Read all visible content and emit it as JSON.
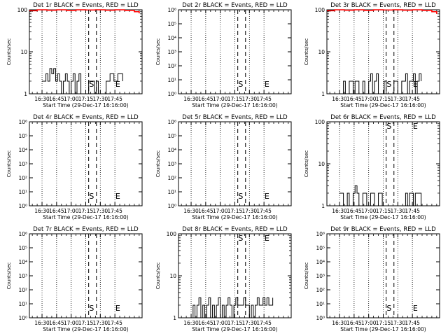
{
  "colors": {
    "events": "#000000",
    "lld": "#ff0000",
    "background": "#ffffff"
  },
  "chart_data": [
    {
      "type": "line",
      "title": "Det 1r BLACK = Events, RED = LLD",
      "xlabel": "Start Time (29-Dec-17 16:16:00)",
      "ylabel": "Counts/sec",
      "yscale": "log",
      "ylim": [
        1,
        100
      ],
      "y_ticks": [
        "1",
        "10",
        "100"
      ],
      "x_ticks": [
        "16:30",
        "16:45",
        "17:00",
        "17:15",
        "17:30",
        "17:45"
      ],
      "markers": [
        {
          "label": "S",
          "x_min": 1040
        },
        {
          "label": "E",
          "x_min": 1070
        }
      ],
      "series": [
        {
          "name": "Events",
          "values": [
            [
              990,
              2
            ],
            [
              993,
              2
            ],
            [
              994,
              3
            ],
            [
              996,
              2
            ],
            [
              998,
              4
            ],
            [
              1000,
              3
            ],
            [
              1002,
              4
            ],
            [
              1004,
              2
            ],
            [
              1006,
              3
            ],
            [
              1008,
              2
            ],
            [
              1010,
              1
            ],
            [
              1012,
              2
            ],
            [
              1014,
              3
            ],
            [
              1016,
              2
            ],
            [
              1018,
              1
            ],
            [
              1020,
              2
            ],
            [
              1022,
              3
            ],
            [
              1024,
              1
            ],
            [
              1026,
              2
            ],
            [
              1028,
              3
            ],
            [
              1030,
              1
            ],
            [
              1034,
              1
            ],
            [
              1038,
              2
            ],
            [
              1041,
              2
            ],
            [
              1044,
              1
            ],
            [
              1046,
              2
            ],
            [
              1048,
              1
            ],
            [
              1052,
              1
            ],
            [
              1056,
              2
            ],
            [
              1060,
              3
            ],
            [
              1064,
              2
            ],
            [
              1068,
              3
            ],
            [
              1072,
              3
            ],
            [
              1073,
              2
            ]
          ]
        },
        {
          "name": "LLD",
          "values": [
            [
              977,
              95
            ],
            [
              985,
              100
            ],
            [
              995,
              98
            ],
            [
              1005,
              100
            ],
            [
              1015,
              97
            ],
            [
              1025,
              100
            ],
            [
              1035,
              99
            ],
            [
              1045,
              100
            ],
            [
              1055,
              98
            ],
            [
              1065,
              100
            ],
            [
              1075,
              97
            ],
            [
              1085,
              90
            ],
            [
              1090,
              82
            ]
          ]
        }
      ]
    },
    {
      "type": "line",
      "title": "Det 2r BLACK = Events, RED = LLD",
      "xlabel": "Start Time (29-Dec-17 16:16:00)",
      "ylabel": "Counts/sec",
      "yscale": "log",
      "ylim": [
        1,
        1000000
      ],
      "y_ticks": [
        "10⁰",
        "10¹",
        "10²",
        "10³",
        "10⁴",
        "10⁵",
        "10⁶"
      ],
      "x_ticks": [
        "16:30",
        "16:45",
        "17:00",
        "17:15",
        "17:30",
        "17:45"
      ],
      "markers": [
        {
          "label": "S",
          "x_min": 1040
        },
        {
          "label": "E",
          "x_min": 1070
        }
      ],
      "series": []
    },
    {
      "type": "line",
      "title": "Det 3r BLACK = Events, RED = LLD",
      "xlabel": "Start Time (29-Dec-17 16:16:00)",
      "ylabel": "Counts/sec",
      "yscale": "log",
      "ylim": [
        1,
        100
      ],
      "y_ticks": [
        "1",
        "10",
        "100"
      ],
      "x_ticks": [
        "16:30",
        "16:45",
        "17:00",
        "17:15",
        "17:30",
        "17:45"
      ],
      "markers": [
        {
          "label": "S",
          "x_min": 1040
        },
        {
          "label": "E",
          "x_min": 1070
        }
      ],
      "series": [
        {
          "name": "Events",
          "values": [
            [
              990,
              1
            ],
            [
              994,
              2
            ],
            [
              996,
              1
            ],
            [
              1000,
              2
            ],
            [
              1004,
              1
            ],
            [
              1006,
              2
            ],
            [
              1010,
              1
            ],
            [
              1014,
              2
            ],
            [
              1016,
              1
            ],
            [
              1020,
              2
            ],
            [
              1022,
              3
            ],
            [
              1024,
              1
            ],
            [
              1026,
              2
            ],
            [
              1028,
              3
            ],
            [
              1030,
              1
            ],
            [
              1034,
              1
            ],
            [
              1036,
              2
            ],
            [
              1038,
              1
            ],
            [
              1044,
              1
            ],
            [
              1046,
              2
            ],
            [
              1050,
              1
            ],
            [
              1054,
              2
            ],
            [
              1058,
              3
            ],
            [
              1060,
              1
            ],
            [
              1062,
              2
            ],
            [
              1066,
              3
            ],
            [
              1068,
              1
            ],
            [
              1070,
              2
            ],
            [
              1072,
              3
            ],
            [
              1074,
              2
            ]
          ]
        },
        {
          "name": "LLD",
          "values": [
            [
              977,
              95
            ],
            [
              985,
              100
            ],
            [
              995,
              98
            ],
            [
              1005,
              100
            ],
            [
              1015,
              97
            ],
            [
              1025,
              100
            ],
            [
              1035,
              99
            ],
            [
              1045,
              100
            ],
            [
              1055,
              98
            ],
            [
              1065,
              100
            ],
            [
              1075,
              97
            ],
            [
              1085,
              90
            ],
            [
              1090,
              80
            ]
          ]
        }
      ]
    },
    {
      "type": "line",
      "title": "Det 4r BLACK = Events, RED = LLD",
      "xlabel": "Start Time (29-Dec-17 16:16:00)",
      "ylabel": "Counts/sec",
      "yscale": "log",
      "ylim": [
        1,
        1000000
      ],
      "y_ticks": [
        "10⁰",
        "10¹",
        "10²",
        "10³",
        "10⁴",
        "10⁵",
        "10⁶"
      ],
      "x_ticks": [
        "16:30",
        "16:45",
        "17:00",
        "17:15",
        "17:30",
        "17:45"
      ],
      "markers": [
        {
          "label": "S",
          "x_min": 1040
        },
        {
          "label": "E",
          "x_min": 1070
        }
      ],
      "series": []
    },
    {
      "type": "line",
      "title": "Det 5r BLACK = Events, RED = LLD",
      "xlabel": "Start Time (29-Dec-17 16:16:00)",
      "ylabel": "Counts/sec",
      "yscale": "log",
      "ylim": [
        1,
        1000000
      ],
      "y_ticks": [
        "10⁰",
        "10¹",
        "10²",
        "10³",
        "10⁴",
        "10⁵",
        "10⁶"
      ],
      "x_ticks": [
        "16:30",
        "16:45",
        "17:00",
        "17:15",
        "17:30",
        "17:45"
      ],
      "markers": [
        {
          "label": "S",
          "x_min": 1040
        },
        {
          "label": "E",
          "x_min": 1070
        }
      ],
      "series": []
    },
    {
      "type": "line",
      "title": "Det 6r BLACK = Events, RED = LLD",
      "xlabel": "Start Time (29-Dec-17 16:16:00)",
      "ylabel": "Counts/sec",
      "yscale": "log",
      "ylim": [
        1,
        100
      ],
      "y_ticks": [
        "1",
        "10",
        "100"
      ],
      "x_ticks": [
        "16:30",
        "16:45",
        "17:00",
        "17:15",
        "17:30",
        "17:45"
      ],
      "markers": [
        {
          "label": "S",
          "x_min": 1040
        },
        {
          "label": "E",
          "x_min": 1070
        }
      ],
      "series": [
        {
          "name": "Events",
          "values": [
            [
              990,
              2
            ],
            [
              994,
              1
            ],
            [
              998,
              2
            ],
            [
              1000,
              1
            ],
            [
              1004,
              2
            ],
            [
              1006,
              3
            ],
            [
              1008,
              2
            ],
            [
              1010,
              1
            ],
            [
              1014,
              2
            ],
            [
              1018,
              1
            ],
            [
              1022,
              2
            ],
            [
              1026,
              1
            ],
            [
              1030,
              2
            ],
            [
              1034,
              1
            ],
            [
              1040,
              1
            ],
            [
              1044,
              1
            ],
            [
              1052,
              1
            ],
            [
              1058,
              2
            ],
            [
              1060,
              1
            ],
            [
              1062,
              2
            ],
            [
              1066,
              1
            ],
            [
              1068,
              2
            ],
            [
              1072,
              2
            ],
            [
              1074,
              1
            ]
          ]
        }
      ]
    },
    {
      "type": "line",
      "title": "Det 7r BLACK = Events, RED = LLD",
      "xlabel": "Start Time (29-Dec-17 16:16:00)",
      "ylabel": "Counts/sec",
      "yscale": "log",
      "ylim": [
        1,
        1000000
      ],
      "y_ticks": [
        "10⁰",
        "10¹",
        "10²",
        "10³",
        "10⁴",
        "10⁵",
        "10⁶"
      ],
      "x_ticks": [
        "16:30",
        "16:45",
        "17:00",
        "17:15",
        "17:30",
        "17:45"
      ],
      "markers": [
        {
          "label": "S",
          "x_min": 1040
        },
        {
          "label": "E",
          "x_min": 1070
        }
      ],
      "series": []
    },
    {
      "type": "line",
      "title": "Det 8r BLACK = Events, RED = LLD",
      "xlabel": "Start Time (29-Dec-17 16:16:00)",
      "ylabel": "Counts/sec",
      "yscale": "log",
      "ylim": [
        1,
        100
      ],
      "y_ticks": [
        "1",
        "10",
        "100"
      ],
      "x_ticks": [
        "16:30",
        "16:45",
        "17:00",
        "17:15",
        "17:30",
        "17:45"
      ],
      "markers": [
        {
          "label": "S",
          "x_min": 1040
        },
        {
          "label": "E",
          "x_min": 1070
        }
      ],
      "series": [
        {
          "name": "Events",
          "values": [
            [
              990,
              1
            ],
            [
              992,
              2
            ],
            [
              994,
              1
            ],
            [
              996,
              2
            ],
            [
              998,
              3
            ],
            [
              1000,
              1
            ],
            [
              1002,
              2
            ],
            [
              1004,
              1
            ],
            [
              1006,
              2
            ],
            [
              1008,
              3
            ],
            [
              1010,
              1
            ],
            [
              1012,
              2
            ],
            [
              1014,
              1
            ],
            [
              1016,
              2
            ],
            [
              1018,
              3
            ],
            [
              1020,
              1
            ],
            [
              1022,
              2
            ],
            [
              1024,
              1
            ],
            [
              1026,
              2
            ],
            [
              1028,
              3
            ],
            [
              1030,
              2
            ],
            [
              1032,
              1
            ],
            [
              1034,
              2
            ],
            [
              1036,
              3
            ],
            [
              1038,
              2
            ],
            [
              1042,
              2
            ],
            [
              1044,
              3
            ],
            [
              1046,
              2
            ],
            [
              1048,
              2
            ],
            [
              1050,
              1
            ],
            [
              1052,
              2
            ],
            [
              1054,
              1
            ],
            [
              1056,
              2
            ],
            [
              1058,
              3
            ],
            [
              1060,
              2
            ],
            [
              1062,
              2
            ],
            [
              1064,
              3
            ],
            [
              1066,
              2
            ],
            [
              1068,
              3
            ],
            [
              1070,
              2
            ],
            [
              1074,
              3
            ]
          ]
        }
      ]
    },
    {
      "type": "line",
      "title": "Det 9r BLACK = Events, RED = LLD",
      "xlabel": "Start Time (29-Dec-17 16:16:00)",
      "ylabel": "Counts/sec",
      "yscale": "log",
      "ylim": [
        1,
        1000000
      ],
      "y_ticks": [
        "10⁰",
        "10¹",
        "10²",
        "10³",
        "10⁴",
        "10⁵",
        "10⁶"
      ],
      "x_ticks": [
        "16:30",
        "16:45",
        "17:00",
        "17:15",
        "17:30",
        "17:45"
      ],
      "markers": [
        {
          "label": "S",
          "x_min": 1040
        },
        {
          "label": "E",
          "x_min": 1070
        }
      ],
      "series": []
    }
  ]
}
